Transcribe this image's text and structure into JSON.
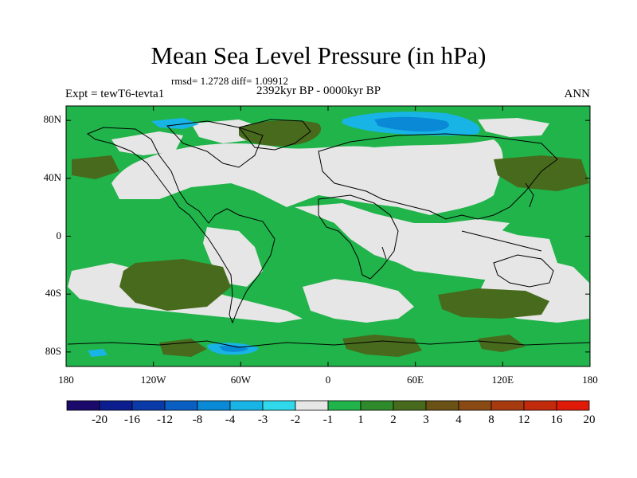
{
  "title": "Mean Sea Level Pressure (in hPa)",
  "stats": "rmsd= 1.2728 diff= 1.09912",
  "expt": "Expt = tewT6-tevta1",
  "period": "2392kyr BP - 0000kyr BP",
  "season": "ANN",
  "map": {
    "lat_ticks": [
      {
        "value": 80,
        "label": "80N"
      },
      {
        "value": 40,
        "label": "40N"
      },
      {
        "value": 0,
        "label": "0"
      },
      {
        "value": -40,
        "label": "40S"
      },
      {
        "value": -80,
        "label": "80S"
      }
    ],
    "lon_ticks": [
      {
        "value": -180,
        "label": "180"
      },
      {
        "value": -120,
        "label": "120W"
      },
      {
        "value": -60,
        "label": "60W"
      },
      {
        "value": 0,
        "label": "0"
      },
      {
        "value": 60,
        "label": "60E"
      },
      {
        "value": 120,
        "label": "120E"
      },
      {
        "value": 180,
        "label": "180"
      }
    ],
    "lat_range": [
      -90,
      90
    ],
    "lon_range": [
      -180,
      180
    ]
  },
  "colorbar": {
    "colors": [
      "#1b0a6b",
      "#0c1e8f",
      "#0a3aa8",
      "#0a5fc2",
      "#0a8ad6",
      "#19b4e6",
      "#2fd8ea",
      "#e6e6e6",
      "#20b44a",
      "#2e8a2a",
      "#486a1c",
      "#6a5216",
      "#8a4a14",
      "#a83a10",
      "#c22a0c",
      "#e01a08"
    ],
    "labels": [
      "-20",
      "-16",
      "-12",
      "-8",
      "-4",
      "-3",
      "-2",
      "-1",
      "1",
      "2",
      "3",
      "4",
      "8",
      "12",
      "16",
      "20"
    ]
  },
  "fields": {
    "background_color": "#20b44a",
    "neutral_color": "#e6e6e6",
    "positive_strong_color": "#486a1c",
    "negative_color": "#19b4e6",
    "negative_strong_color": "#0a8ad6"
  }
}
